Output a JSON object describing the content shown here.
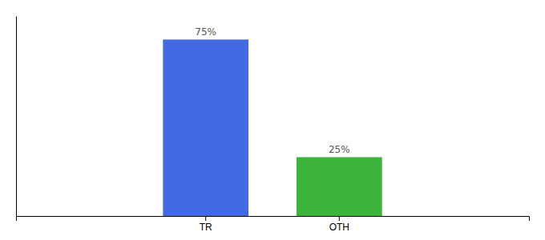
{
  "chart_data": {
    "type": "bar",
    "categories": [
      "TR",
      "OTH"
    ],
    "values": [
      75,
      25
    ],
    "value_labels": [
      "75%",
      "25%"
    ],
    "colors": [
      "#4169E1",
      "#3CB43C"
    ],
    "ylim": [
      0,
      85
    ],
    "data_labels": true,
    "tick_labels": "x"
  }
}
